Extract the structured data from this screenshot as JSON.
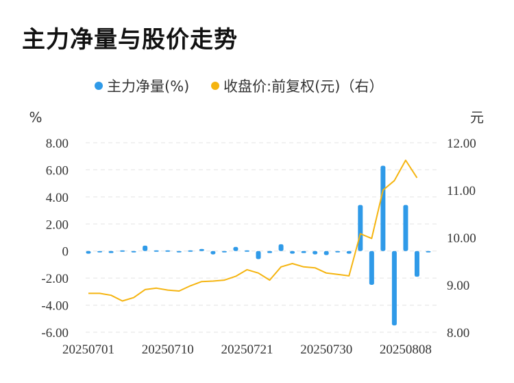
{
  "title": "主力净量与股价走势",
  "chart_data": {
    "type": "bar+line",
    "legend": {
      "placement": "top-center"
    },
    "legend_items": [
      {
        "label": "主力净量(%)",
        "color": "#2f9ae8"
      },
      {
        "label": "收盘价:前复权(元)（右）",
        "color": "#f5b40f"
      }
    ],
    "y_left": {
      "unit": "%",
      "ticks": [
        "8.00",
        "6.00",
        "4.00",
        "2.00",
        "0",
        "-2.00",
        "-4.00",
        "-6.00"
      ],
      "ylim": [
        -6,
        8
      ]
    },
    "y_right": {
      "unit": "元",
      "ticks": [
        "12.00",
        "11.00",
        "10.00",
        "9.00",
        "8.00"
      ],
      "ylim": [
        8,
        12
      ]
    },
    "x_tick_labels": [
      "20250701",
      "20250710",
      "20250721",
      "20250730",
      "20250808"
    ],
    "grid": true,
    "dates": [
      "20250701",
      "20250702",
      "20250703",
      "20250704",
      "20250707",
      "20250708",
      "20250709",
      "20250710",
      "20250711",
      "20250714",
      "20250715",
      "20250716",
      "20250717",
      "20250718",
      "20250721",
      "20250722",
      "20250723",
      "20250724",
      "20250725",
      "20250728",
      "20250729",
      "20250730",
      "20250731",
      "20250801",
      "20250804",
      "20250805",
      "20250806",
      "20250807",
      "20250808",
      "20250811",
      "20250812"
    ],
    "series": [
      {
        "name": "主力净量(%)",
        "kind": "bar",
        "axis": "left",
        "color": "#2f9ae8",
        "values": [
          -0.2,
          -0.1,
          -0.15,
          0.05,
          -0.1,
          0.4,
          0.05,
          0.05,
          -0.1,
          0.05,
          0.15,
          -0.25,
          -0.1,
          0.3,
          0.05,
          -0.6,
          -0.15,
          0.5,
          -0.2,
          -0.15,
          -0.25,
          -0.3,
          -0.05,
          -0.2,
          3.4,
          -2.5,
          6.3,
          -5.5,
          3.4,
          -1.9,
          0
        ]
      },
      {
        "name": "收盘价:前复权(元)（右）",
        "kind": "line",
        "axis": "right",
        "color": "#f5b40f",
        "values": [
          8.82,
          8.82,
          8.78,
          8.66,
          8.73,
          8.9,
          8.93,
          8.89,
          8.87,
          8.98,
          9.07,
          9.08,
          9.1,
          9.18,
          9.32,
          9.25,
          9.1,
          9.38,
          9.45,
          9.38,
          9.36,
          9.25,
          9.22,
          9.19,
          10.08,
          9.98,
          11.0,
          11.2,
          11.63,
          11.26,
          null
        ]
      }
    ]
  }
}
